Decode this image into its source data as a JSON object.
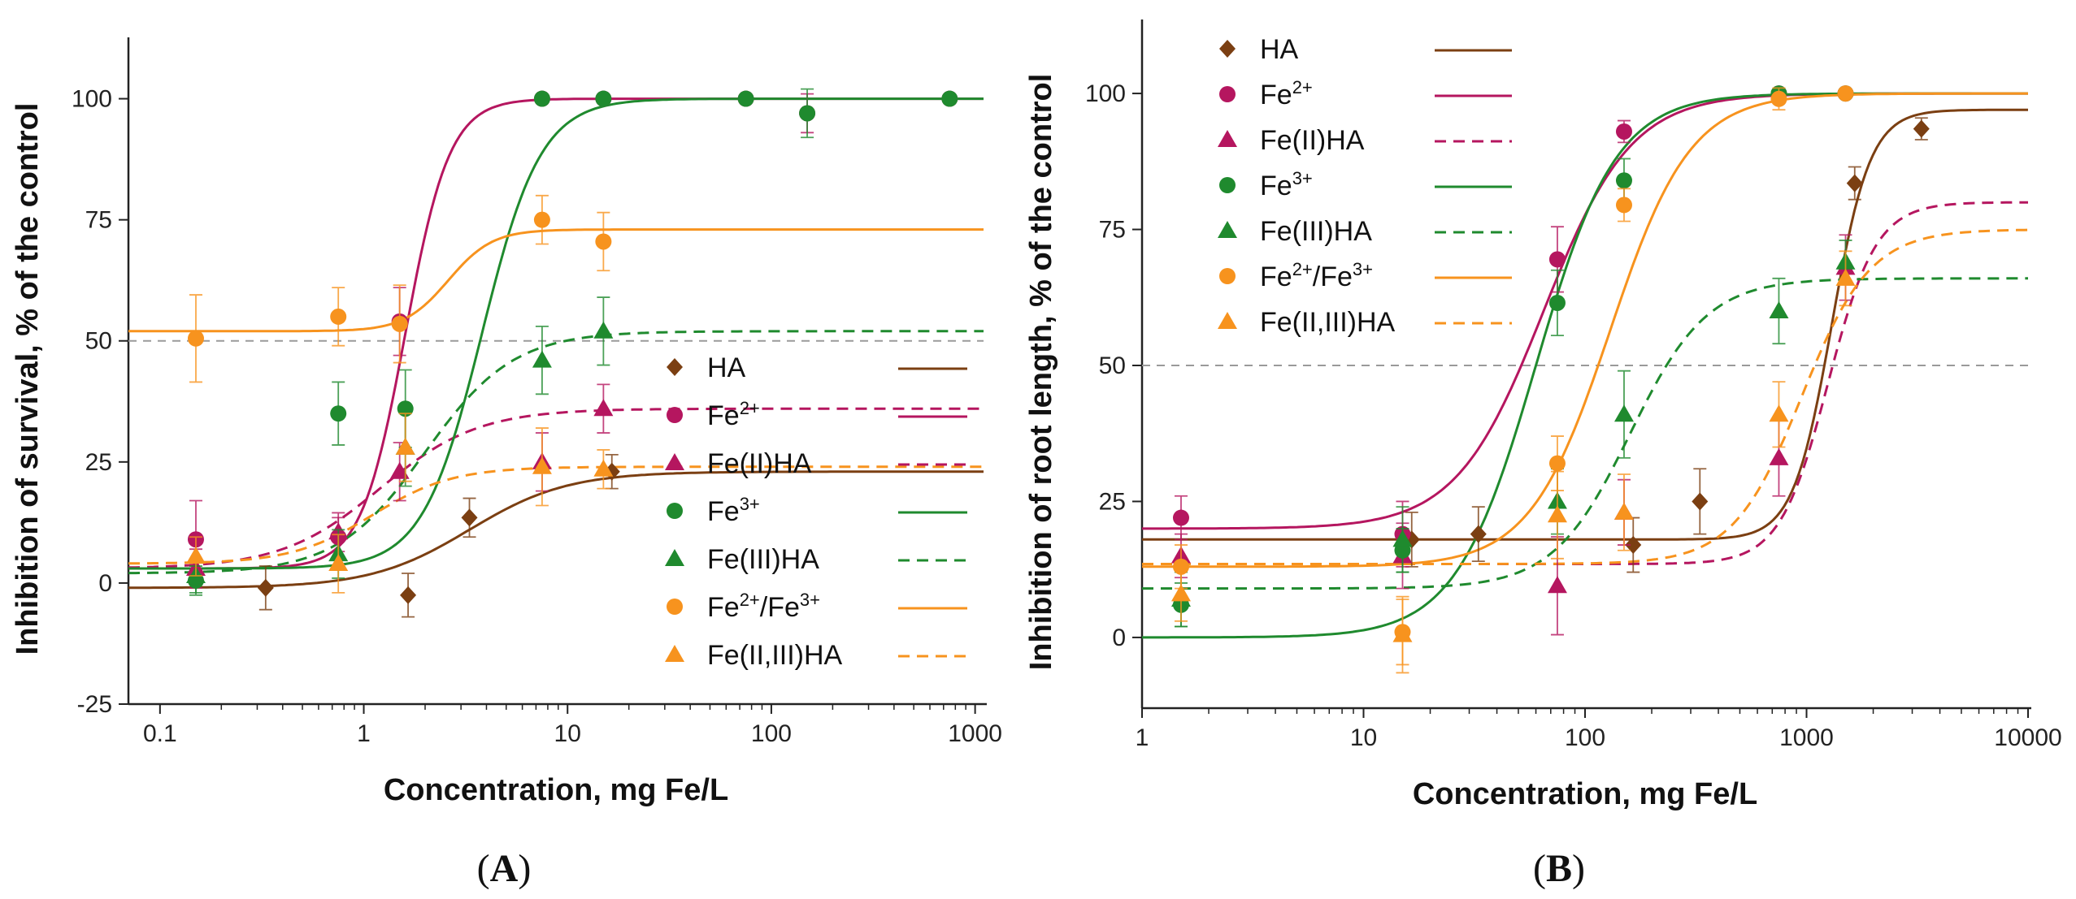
{
  "panels": {
    "a": "A",
    "b": "B"
  },
  "chart_data": [
    {
      "type": "scatter",
      "panel": "A",
      "xlabel": "Concentration, mg Fe/L",
      "ylabel": "Inhibition of survival, % of the control",
      "xscale": "log",
      "xlim": [
        0.07,
        1100
      ],
      "ylim": [
        -25,
        112
      ],
      "xticks": [
        0.1,
        1,
        10,
        100,
        1000
      ],
      "xtick_labels": [
        "0.1",
        "1",
        "10",
        "100",
        "1000"
      ],
      "yticks": [
        -25,
        0,
        25,
        50,
        75,
        100
      ],
      "ytick_labels": [
        "-25",
        "0",
        "25",
        "50",
        "75",
        "100"
      ],
      "reference_line": 50,
      "legend_position": "lower-right",
      "series": [
        {
          "key": "ha",
          "name": "HA",
          "base": "HA",
          "color": "#7b3f12",
          "marker": "diamond",
          "dash": false,
          "points": [
            [
              0.33,
              -1,
              4.5
            ],
            [
              1.65,
              -2.5,
              4.5
            ],
            [
              3.3,
              13.5,
              4
            ],
            [
              16.5,
              23,
              3.5
            ]
          ],
          "curve": {
            "bottom": -1,
            "top": 23,
            "ec50": 3.3,
            "hill": 1.8
          }
        },
        {
          "key": "fe2",
          "name": "Fe2+",
          "base": "Fe",
          "sup": "2+",
          "color": "#b5165f",
          "marker": "circle",
          "dash": false,
          "points": [
            [
              0.15,
              9,
              8
            ],
            [
              0.75,
              9.5,
              4
            ],
            [
              1.5,
              54,
              7
            ],
            [
              7.5,
              100,
              1
            ],
            [
              15,
              100,
              1
            ],
            [
              75,
              100,
              1
            ],
            [
              150,
              97,
              4
            ],
            [
              750,
              100,
              1
            ]
          ],
          "curve": {
            "bottom": 3,
            "top": 100,
            "ec50": 1.6,
            "hill": 4
          }
        },
        {
          "key": "fe2ha",
          "name": "Fe(II)HA",
          "base": "Fe(II)HA",
          "color": "#b5165f",
          "marker": "triangle",
          "dash": true,
          "points": [
            [
              0.15,
              3,
              4
            ],
            [
              0.75,
              10.5,
              4
            ],
            [
              1.5,
              23,
              6
            ],
            [
              7.5,
              25,
              6
            ],
            [
              15,
              36,
              5
            ]
          ],
          "curve": {
            "bottom": 3,
            "top": 36,
            "ec50": 1.2,
            "hill": 1.8
          }
        },
        {
          "key": "fe3",
          "name": "Fe3+",
          "base": "Fe",
          "sup": "3+",
          "color": "#1f8a2e",
          "marker": "circle",
          "dash": false,
          "points": [
            [
              0.15,
              0.5,
              3
            ],
            [
              0.75,
              35,
              6.5
            ],
            [
              1.6,
              36,
              8
            ],
            [
              7.5,
              100,
              1
            ],
            [
              15,
              100,
              1
            ],
            [
              75,
              100,
              1
            ],
            [
              150,
              97,
              5
            ],
            [
              750,
              100,
              1
            ]
          ],
          "curve": {
            "bottom": 3,
            "top": 100,
            "ec50": 3.8,
            "hill": 3
          }
        },
        {
          "key": "fe3ha",
          "name": "Fe(III)HA",
          "base": "Fe(III)HA",
          "color": "#1f8a2e",
          "marker": "triangle",
          "dash": true,
          "points": [
            [
              0.15,
              1.5,
              3.5
            ],
            [
              0.75,
              6,
              5
            ],
            [
              1.6,
              28,
              8
            ],
            [
              7.5,
              46,
              7
            ],
            [
              15,
              52,
              7
            ]
          ],
          "curve": {
            "bottom": 2,
            "top": 52,
            "ec50": 2.0,
            "hill": 2
          }
        },
        {
          "key": "fe23",
          "name": "Fe2+/Fe3+",
          "base": "Fe",
          "sup": "2+",
          "mid": "/Fe",
          "sup2": "3+",
          "color": "#f7931e",
          "marker": "circle",
          "dash": false,
          "points": [
            [
              0.15,
              50.5,
              9
            ],
            [
              0.75,
              55,
              6
            ],
            [
              1.5,
              53.5,
              8
            ],
            [
              7.5,
              75,
              5
            ],
            [
              15,
              70.5,
              6
            ]
          ],
          "curve": {
            "bottom": 52,
            "top": 73,
            "ec50": 2.6,
            "hill": 4
          }
        },
        {
          "key": "fe23ha",
          "name": "Fe(II,III)HA",
          "base": "Fe(II,III)HA",
          "color": "#f7931e",
          "marker": "triangle",
          "dash": true,
          "points": [
            [
              0.15,
              5.5,
              4
            ],
            [
              0.75,
              4,
              6
            ],
            [
              1.6,
              28,
              7
            ],
            [
              7.5,
              24,
              8
            ],
            [
              15,
              23.5,
              4
            ]
          ],
          "curve": {
            "bottom": 4,
            "top": 24,
            "ec50": 1.1,
            "hill": 2.2
          }
        }
      ]
    },
    {
      "type": "scatter",
      "panel": "B",
      "xlabel": "Concentration, mg Fe/L",
      "ylabel": "Inhibition of root length, % of the control",
      "xscale": "log",
      "xlim": [
        1,
        10000
      ],
      "ylim": [
        -13,
        113
      ],
      "xticks": [
        1,
        10,
        100,
        1000,
        10000
      ],
      "xtick_labels": [
        "1",
        "10",
        "100",
        "1000",
        "10000"
      ],
      "yticks": [
        0,
        25,
        50,
        75,
        100
      ],
      "ytick_labels": [
        "0",
        "25",
        "50",
        "75",
        "100"
      ],
      "reference_line": 50,
      "legend_position": "top-left",
      "series": [
        {
          "key": "ha",
          "name": "HA",
          "base": "HA",
          "color": "#7b3f12",
          "marker": "diamond",
          "dash": false,
          "points": [
            [
              16.5,
              18,
              5
            ],
            [
              33,
              19,
              5
            ],
            [
              165,
              17,
              5
            ],
            [
              330,
              25,
              6
            ],
            [
              1650,
              83.5,
              3
            ],
            [
              3300,
              93.5,
              2
            ]
          ],
          "curve": {
            "bottom": 18,
            "top": 97,
            "ec50": 1300,
            "hill": 5
          }
        },
        {
          "key": "fe2",
          "name": "Fe2+",
          "base": "Fe",
          "sup": "2+",
          "color": "#b5165f",
          "marker": "circle",
          "dash": false,
          "points": [
            [
              1.5,
              22,
              4
            ],
            [
              15,
              19,
              6
            ],
            [
              75,
              69.5,
              6
            ],
            [
              150,
              93,
              2
            ],
            [
              750,
              100,
              1
            ],
            [
              1500,
              100,
              1
            ]
          ],
          "curve": {
            "bottom": 20,
            "top": 100,
            "ec50": 65,
            "hill": 2.2
          }
        },
        {
          "key": "fe2ha",
          "name": "Fe(II)HA",
          "base": "Fe(II)HA",
          "color": "#b5165f",
          "marker": "triangle",
          "dash": true,
          "points": [
            [
              1.5,
              15,
              4
            ],
            [
              15,
              15,
              6
            ],
            [
              75,
              9.5,
              9
            ],
            [
              150,
              23,
              6
            ],
            [
              750,
              33,
              7
            ],
            [
              1500,
              68,
              6
            ]
          ],
          "curve": {
            "bottom": 13.5,
            "top": 80,
            "ec50": 1250,
            "hill": 4
          }
        },
        {
          "key": "fe3",
          "name": "Fe3+",
          "base": "Fe",
          "sup": "3+",
          "color": "#1f8a2e",
          "marker": "circle",
          "dash": false,
          "points": [
            [
              1.5,
              6,
              4
            ],
            [
              15,
              16,
              4
            ],
            [
              75,
              61.5,
              6
            ],
            [
              150,
              84,
              4
            ],
            [
              750,
              100,
              1
            ],
            [
              1500,
              100,
              1
            ]
          ],
          "curve": {
            "bottom": 0,
            "top": 100,
            "ec50": 60,
            "hill": 2.4
          }
        },
        {
          "key": "fe3ha",
          "name": "Fe(III)HA",
          "base": "Fe(III)HA",
          "color": "#1f8a2e",
          "marker": "triangle",
          "dash": true,
          "points": [
            [
              1.5,
              7,
              5
            ],
            [
              15,
              18,
              6
            ],
            [
              75,
              25,
              6
            ],
            [
              150,
              41,
              8
            ],
            [
              750,
              60,
              6
            ],
            [
              1500,
              69,
              4
            ]
          ],
          "curve": {
            "bottom": 9,
            "top": 66,
            "ec50": 160,
            "hill": 2.5
          }
        },
        {
          "key": "fe23",
          "name": "Fe2+/Fe3+",
          "base": "Fe",
          "sup": "2+",
          "mid": "/Fe",
          "sup2": "3+",
          "color": "#f7931e",
          "marker": "circle",
          "dash": false,
          "points": [
            [
              1.5,
              13,
              4
            ],
            [
              15,
              1,
              6
            ],
            [
              75,
              32,
              5
            ],
            [
              150,
              79.5,
              3
            ],
            [
              750,
              99,
              2
            ],
            [
              1500,
              100,
              1
            ]
          ],
          "curve": {
            "bottom": 13,
            "top": 100,
            "ec50": 130,
            "hill": 2.4
          }
        },
        {
          "key": "fe23ha",
          "name": "Fe(II,III)HA",
          "base": "Fe(II,III)HA",
          "color": "#f7931e",
          "marker": "triangle",
          "dash": true,
          "points": [
            [
              1.5,
              8,
              5
            ],
            [
              15,
              0.5,
              7
            ],
            [
              75,
              22.5,
              8
            ],
            [
              150,
              23,
              7
            ],
            [
              750,
              41,
              6
            ],
            [
              1500,
              66,
              5
            ]
          ],
          "curve": {
            "bottom": 13.5,
            "top": 75,
            "ec50": 950,
            "hill": 2.8
          }
        }
      ]
    }
  ]
}
